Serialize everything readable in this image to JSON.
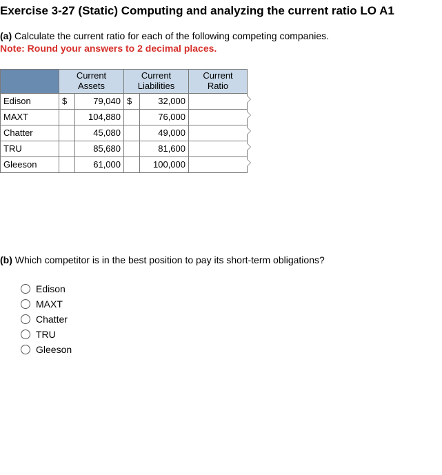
{
  "title": "Exercise 3-27 (Static) Computing and analyzing the current ratio LO A1",
  "partA": {
    "label": "(a)",
    "text": "Calculate the current ratio for each of the following competing companies."
  },
  "note": "Note: Round your answers to 2 decimal places.",
  "table": {
    "headers": {
      "assets": "Current\nAssets",
      "liabilities": "Current\nLiabilities",
      "ratio": "Current\nRatio"
    },
    "assets_sym": "$",
    "liab_sym": "$",
    "rows": [
      {
        "company": "Edison",
        "assets": "79,040",
        "liabilities": "32,000",
        "ratio": "",
        "show_assets_sym": true,
        "show_liab_sym": true
      },
      {
        "company": "MAXT",
        "assets": "104,880",
        "liabilities": "76,000",
        "ratio": "",
        "show_assets_sym": false,
        "show_liab_sym": false
      },
      {
        "company": "Chatter",
        "assets": "45,080",
        "liabilities": "49,000",
        "ratio": "",
        "show_assets_sym": false,
        "show_liab_sym": false
      },
      {
        "company": "TRU",
        "assets": "85,680",
        "liabilities": "81,600",
        "ratio": "",
        "show_assets_sym": false,
        "show_liab_sym": false
      },
      {
        "company": "Gleeson",
        "assets": "61,000",
        "liabilities": "100,000",
        "ratio": "",
        "show_assets_sym": false,
        "show_liab_sym": false
      }
    ]
  },
  "partB": {
    "label": "(b)",
    "text": "Which competitor is in the best position to pay its short-term obligations?"
  },
  "options": [
    {
      "label": "Edison",
      "selected": false
    },
    {
      "label": "MAXT",
      "selected": false
    },
    {
      "label": "Chatter",
      "selected": false
    },
    {
      "label": "TRU",
      "selected": false
    },
    {
      "label": "Gleeson",
      "selected": false
    }
  ]
}
